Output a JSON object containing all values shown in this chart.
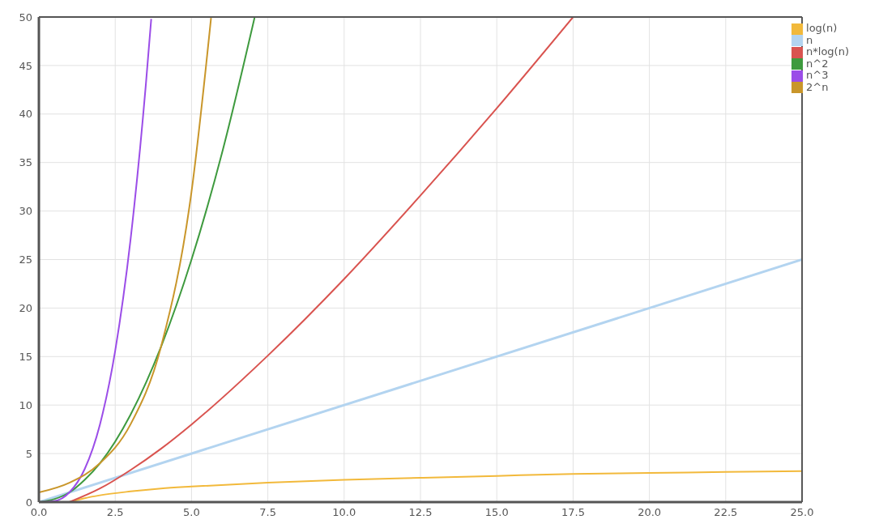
{
  "chart_data": {
    "type": "line",
    "xlim": [
      0,
      25
    ],
    "ylim": [
      0,
      50
    ],
    "xticks": [
      {
        "value": 0,
        "label": "0.0"
      },
      {
        "value": 2.5,
        "label": "2.5"
      },
      {
        "value": 5,
        "label": "5.0"
      },
      {
        "value": 7.5,
        "label": "7.5"
      },
      {
        "value": 10,
        "label": "10.0"
      },
      {
        "value": 12.5,
        "label": "12.5"
      },
      {
        "value": 15,
        "label": "15.0"
      },
      {
        "value": 17.5,
        "label": "17.5"
      },
      {
        "value": 20,
        "label": "20.0"
      },
      {
        "value": 22.5,
        "label": "22.5"
      },
      {
        "value": 25,
        "label": "25.0"
      }
    ],
    "yticks": [
      0,
      5,
      10,
      15,
      20,
      25,
      30,
      35,
      40,
      45,
      50
    ],
    "grid": true,
    "legend": "top right",
    "series": [
      {
        "name": "log(n)",
        "color": "#f2b93b",
        "x": [
          1,
          1.5,
          2,
          3,
          4,
          5,
          7.5,
          10,
          12.5,
          15,
          17.5,
          20,
          22.5,
          25
        ],
        "values": [
          0,
          0.4,
          0.7,
          1.1,
          1.4,
          1.6,
          2.0,
          2.3,
          2.5,
          2.7,
          2.9,
          3.0,
          3.1,
          3.2
        ]
      },
      {
        "name": "n",
        "color": "#b3d4f0",
        "x": [
          0,
          25
        ],
        "values": [
          0,
          25
        ]
      },
      {
        "name": "n*log(n)",
        "color": "#d9534f",
        "x": [
          1,
          2,
          3,
          4,
          5,
          7.5,
          10,
          12.5,
          15,
          17.5
        ],
        "values": [
          0,
          1.4,
          3.3,
          5.5,
          8,
          15.1,
          23.0,
          31.6,
          40.6,
          50
        ]
      },
      {
        "name": "n^2",
        "color": "#3e9a3e",
        "x": [
          0,
          0.5,
          1,
          1.5,
          2,
          3,
          4,
          5,
          6,
          7.07
        ],
        "values": [
          0,
          0.3,
          1,
          2.3,
          4,
          9,
          16,
          25,
          36,
          50
        ]
      },
      {
        "name": "n^3",
        "color": "#9b4de8",
        "x": [
          0,
          0.5,
          1,
          1.5,
          2,
          2.5,
          3,
          3.5,
          3.68
        ],
        "values": [
          0,
          0.1,
          1,
          3.4,
          8,
          15.6,
          27,
          42.9,
          49.8
        ]
      },
      {
        "name": "2^n",
        "color": "#c9962a",
        "x": [
          0,
          1,
          2,
          3,
          4,
          5,
          5.64
        ],
        "values": [
          1,
          2,
          4,
          8,
          16,
          32,
          49.9
        ]
      }
    ]
  }
}
